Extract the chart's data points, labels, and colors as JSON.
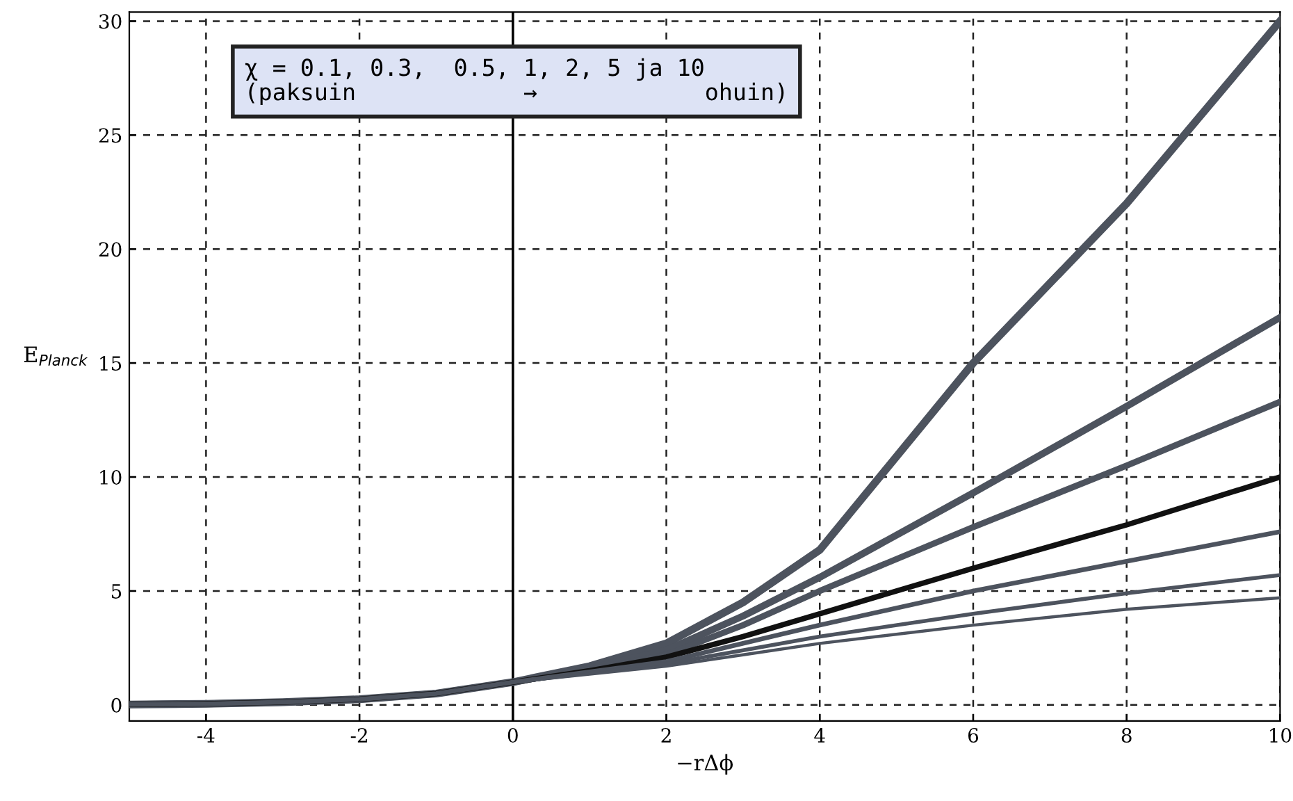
{
  "chart_data": {
    "type": "line",
    "xlabel": "−rΔϕ",
    "ylabel": "E$_{Planck}$",
    "x": [
      -5,
      -4,
      -3,
      -2,
      -1,
      0,
      1,
      2,
      3,
      4,
      6,
      8,
      10
    ],
    "series": [
      {
        "color": "#4d535e",
        "values": [
          0.02,
          0.05,
          0.12,
          0.25,
          0.5,
          1,
          1.7,
          2.7,
          4.5,
          6.8,
          15,
          22,
          30
        ]
      },
      {
        "color": "#4d535e",
        "values": [
          0.02,
          0.05,
          0.12,
          0.25,
          0.5,
          1,
          1.6,
          2.4,
          3.9,
          5.6,
          9.3,
          13.1,
          17
        ]
      },
      {
        "color": "#4d535e",
        "values": [
          0.02,
          0.05,
          0.12,
          0.25,
          0.5,
          1,
          1.55,
          2.2,
          3.5,
          5,
          7.8,
          10.5,
          13.3
        ]
      },
      {
        "color": "#111111",
        "values": [
          0.02,
          0.05,
          0.12,
          0.25,
          0.5,
          1,
          1.5,
          2.1,
          3,
          4,
          6,
          7.9,
          10
        ]
      },
      {
        "color": "#4d535e",
        "values": [
          0.02,
          0.05,
          0.12,
          0.25,
          0.5,
          1,
          1.45,
          1.9,
          2.7,
          3.5,
          5,
          6.3,
          7.6
        ]
      },
      {
        "color": "#4d535e",
        "values": [
          0.02,
          0.05,
          0.12,
          0.25,
          0.5,
          1,
          1.4,
          1.8,
          2.4,
          3,
          4,
          4.9,
          5.7
        ]
      },
      {
        "color": "#4d535e",
        "values": [
          0.02,
          0.05,
          0.12,
          0.25,
          0.5,
          1,
          1.35,
          1.7,
          2.2,
          2.7,
          3.5,
          4.2,
          4.7
        ]
      }
    ],
    "xlim": [
      -5,
      10
    ],
    "xticks": [
      -4,
      -2,
      0,
      2,
      4,
      6,
      8,
      10
    ],
    "ylim": [
      -0.7,
      30.4
    ],
    "yticks": [
      0,
      5,
      10,
      15,
      20,
      25,
      30
    ],
    "grid": true,
    "ref_lines": [
      {
        "axis": "x",
        "value": 0,
        "color": "#000000"
      }
    ],
    "annotations": [
      "χ = 0.1, 0.3,  0.5, 1, 2, 5 ja 10",
      "(paksuin            →            ohuin)"
    ]
  }
}
